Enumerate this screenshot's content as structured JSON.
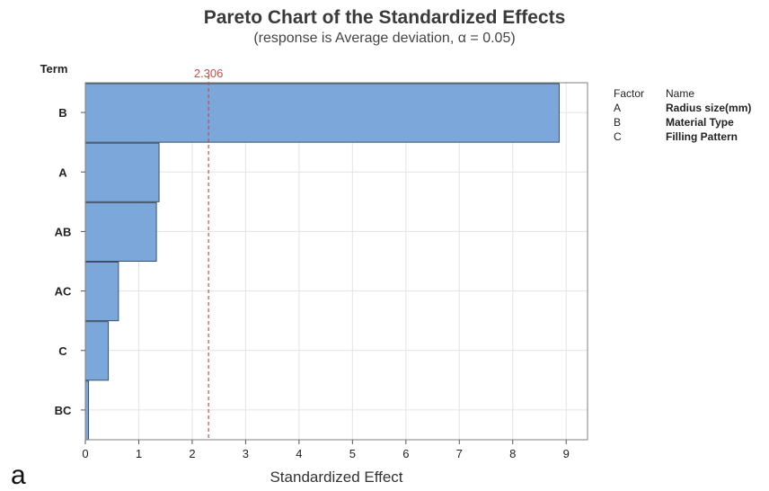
{
  "title": "Pareto Chart of the Standardized Effects",
  "subtitle": "(response is Average deviation, α = 0.05)",
  "panel_label": "a",
  "legend": {
    "header": {
      "factor": "Factor",
      "name": "Name"
    },
    "rows": [
      {
        "factor": "A",
        "name": "Radius size(mm)"
      },
      {
        "factor": "B",
        "name": "Material Type"
      },
      {
        "factor": "C",
        "name": "Filling Pattern"
      }
    ]
  },
  "colors": {
    "bar": "#7ba7da",
    "bar_stroke": "#3d4f66",
    "reference": "#c0504d",
    "grid": "#e3e3e3"
  },
  "chart_data": {
    "type": "bar",
    "orientation": "horizontal",
    "title": "Pareto Chart of the Standardized Effects",
    "subtitle": "(response is Average deviation, α = 0.05)",
    "xlabel": "Standardized Effect",
    "ylabel": "Term",
    "categories": [
      "B",
      "A",
      "AB",
      "AC",
      "C",
      "BC"
    ],
    "values": [
      8.87,
      1.38,
      1.33,
      0.62,
      0.43,
      0.06
    ],
    "xlim": [
      0,
      9.4
    ],
    "xticks": [
      0,
      1,
      2,
      3,
      4,
      5,
      6,
      7,
      8,
      9
    ],
    "reference_line": {
      "value": 2.306,
      "label": "2.306"
    },
    "grid": true
  }
}
